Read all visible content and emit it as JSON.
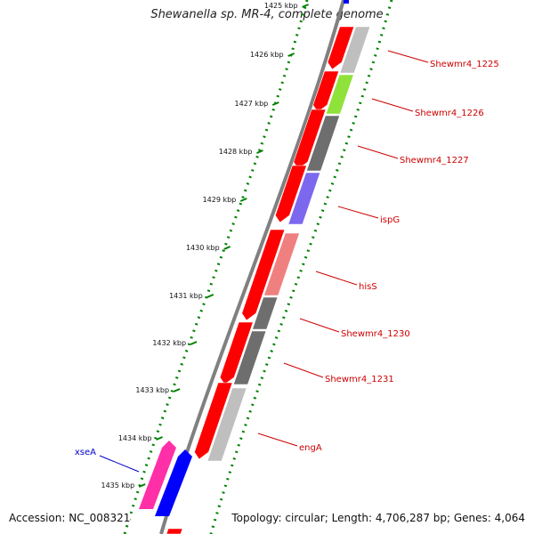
{
  "title": "Shewanella sp. MR-4, complete genome",
  "footer": {
    "accession": "Accession: NC_008321",
    "summary": "Topology: circular; Length: 4,706,287 bp; Genes: 4,064"
  },
  "ticks": [
    {
      "label": "1425 kbp"
    },
    {
      "label": "1426 kbp"
    },
    {
      "label": "1427 kbp"
    },
    {
      "label": "1428 kbp"
    },
    {
      "label": "1429 kbp"
    },
    {
      "label": "1430 kbp"
    },
    {
      "label": "1431 kbp"
    },
    {
      "label": "1432 kbp"
    },
    {
      "label": "1433 kbp"
    },
    {
      "label": "1434 kbp"
    },
    {
      "label": "1435 kbp"
    }
  ],
  "gene_labels": [
    {
      "name": "Shewmr4_1225",
      "color": "#cc0000"
    },
    {
      "name": "Shewmr4_1226",
      "color": "#cc0000"
    },
    {
      "name": "Shewmr4_1227",
      "color": "#cc0000"
    },
    {
      "name": "ispG",
      "color": "#cc0000"
    },
    {
      "name": "hisS",
      "color": "#cc0000"
    },
    {
      "name": "Shewmr4_1230",
      "color": "#cc0000"
    },
    {
      "name": "Shewmr4_1231",
      "color": "#cc0000"
    },
    {
      "name": "engA",
      "color": "#cc0000"
    },
    {
      "name": "xseA",
      "color": "#0000cc"
    }
  ],
  "colors": {
    "cds": "#ff0000",
    "backbone": "#808080",
    "tick": "#008000",
    "feature_gray": "#bfbfbf",
    "feature_darkgray": "#6e6e6e",
    "feature_green": "#8fe23a",
    "feature_purple": "#7b68ee",
    "feature_pink": "#f08080",
    "feature_magenta": "#ff2fa8",
    "feature_blue": "#0000ff"
  }
}
